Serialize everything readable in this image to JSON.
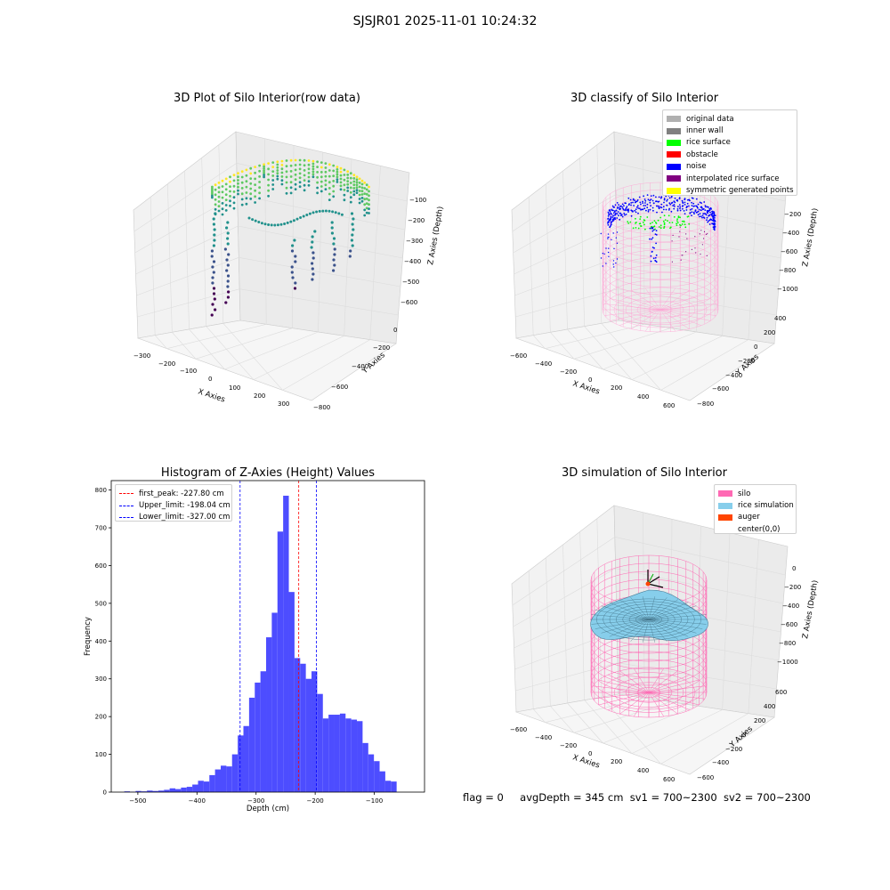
{
  "figure_title": "SJSJR01 2025-11-01 10:24:32",
  "footer": {
    "flag": "flag = 0",
    "avg_depth": "avgDepth = 345 cm",
    "sv1": "sv1 = 700~2300",
    "sv2": "sv2 = 700~2300"
  },
  "colors": {
    "viridis": [
      "#440154",
      "#3b528b",
      "#21918c",
      "#5ec962",
      "#fde725"
    ],
    "histogram_bar": "#4d4dff",
    "silo_wire": "#ff69b4",
    "rice": "#87ceeb",
    "auger": "#ff4500"
  },
  "chart_data": [
    {
      "type": "scatter",
      "title": "3D Plot of Silo Interior(row data)",
      "projection": "3d",
      "xlabel": "X Axies",
      "ylabel": "Y Axies",
      "zlabel": "Z Axies (Depth)",
      "xticks": [
        "−300",
        "−200",
        "−100",
        "0",
        "100",
        "200",
        "300"
      ],
      "yticks": [
        "0",
        "−200",
        "−400",
        "−600",
        "−800"
      ],
      "zticks": [
        "−100",
        "−200",
        "−300",
        "−400",
        "−500",
        "−600"
      ],
      "colormap": "viridis",
      "grid": true
    },
    {
      "type": "scatter",
      "title": "3D classify of Silo Interior",
      "projection": "3d",
      "xlabel": "X Axies",
      "ylabel": "Y Axies",
      "zlabel": "Z Axies (Depth)",
      "xticks": [
        "−600",
        "−400",
        "−200",
        "0",
        "200",
        "400",
        "600"
      ],
      "yticks": [
        "400",
        "200",
        "0",
        "−200",
        "−400",
        "−600",
        "−800"
      ],
      "zticks": [
        "−200",
        "−400",
        "−600",
        "−800",
        "−1000"
      ],
      "legend_position": "top-right",
      "legend": [
        {
          "label": "original data",
          "color": "#b0b0b0"
        },
        {
          "label": "inner wall",
          "color": "#808080"
        },
        {
          "label": "rice surface",
          "color": "#00ff00"
        },
        {
          "label": "obstacle",
          "color": "#ff0000"
        },
        {
          "label": "noise",
          "color": "#0000ff"
        },
        {
          "label": "interpolated rice surface",
          "color": "#800080"
        },
        {
          "label": "symmetric generated points",
          "color": "#ffff00"
        }
      ],
      "grid": true
    },
    {
      "type": "bar",
      "title": "Histogram of Z-Axies (Height) Values",
      "xlabel": "Depth (cm)",
      "ylabel": "Frequency",
      "xlim": [
        -545,
        -15
      ],
      "ylim": [
        0,
        825
      ],
      "xticks": [
        -500,
        -400,
        -300,
        -200,
        -100
      ],
      "yticks": [
        0,
        100,
        200,
        300,
        400,
        500,
        600,
        700,
        800
      ],
      "bin_width": 9.6,
      "bins_start": -523,
      "values": [
        2,
        1,
        3,
        2,
        4,
        3,
        4,
        6,
        10,
        8,
        12,
        14,
        20,
        30,
        28,
        45,
        60,
        70,
        68,
        100,
        150,
        175,
        250,
        290,
        320,
        410,
        475,
        690,
        785,
        530,
        355,
        340,
        300,
        320,
        260,
        195,
        205,
        205,
        208,
        195,
        192,
        188,
        130,
        100,
        82,
        55,
        30,
        28
      ],
      "lines": [
        {
          "label": "first_peak: -227.80 cm",
          "value": -227.8,
          "color": "#ff0000"
        },
        {
          "label": "Upper_limit: -198.04 cm",
          "value": -198.04,
          "color": "#0000ff"
        },
        {
          "label": "Lower_limit: -327.00 cm",
          "value": -327.0,
          "color": "#0000ff"
        }
      ],
      "legend_position": "top-left",
      "grid": false
    },
    {
      "type": "area",
      "title": "3D simulation of Silo Interior",
      "projection": "3d",
      "xlabel": "X Axies",
      "ylabel": "Y Axies",
      "zlabel": "Z Axies (Depth)",
      "xticks": [
        "−600",
        "−400",
        "−200",
        "0",
        "200",
        "400",
        "600"
      ],
      "yticks": [
        "600",
        "400",
        "200",
        "0",
        "−200",
        "−400",
        "−600"
      ],
      "zticks": [
        "0",
        "−200",
        "−400",
        "−600",
        "−800",
        "−1000"
      ],
      "legend_position": "top-right",
      "legend": [
        {
          "label": "silo",
          "color": "#ff69b4"
        },
        {
          "label": "rice simulation",
          "color": "#87ceeb"
        },
        {
          "label": "auger",
          "color": "#ff4500"
        },
        {
          "label": "center(0,0)",
          "color": ""
        }
      ],
      "grid": true
    }
  ]
}
